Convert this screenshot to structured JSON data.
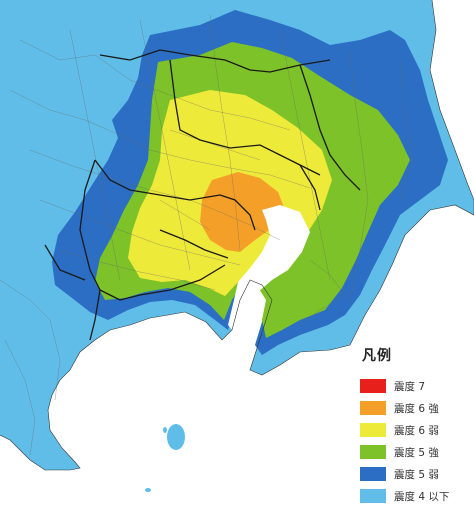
{
  "legend": {
    "title": "凡例",
    "items": [
      {
        "label": "震度 7",
        "color": "#e8201c"
      },
      {
        "label": "震度 6 強",
        "color": "#f4a028"
      },
      {
        "label": "震度 6 弱",
        "color": "#eeea3a"
      },
      {
        "label": "震度 5 強",
        "color": "#7cc228"
      },
      {
        "label": "震度 5 弱",
        "color": "#2b6ec4"
      },
      {
        "label": "震度 4 以下",
        "color": "#5fbde8"
      }
    ]
  },
  "colors": {
    "sea": "#ffffff",
    "boundary": "#1a1a1a",
    "municipal_lines": "#6a6a6a"
  }
}
